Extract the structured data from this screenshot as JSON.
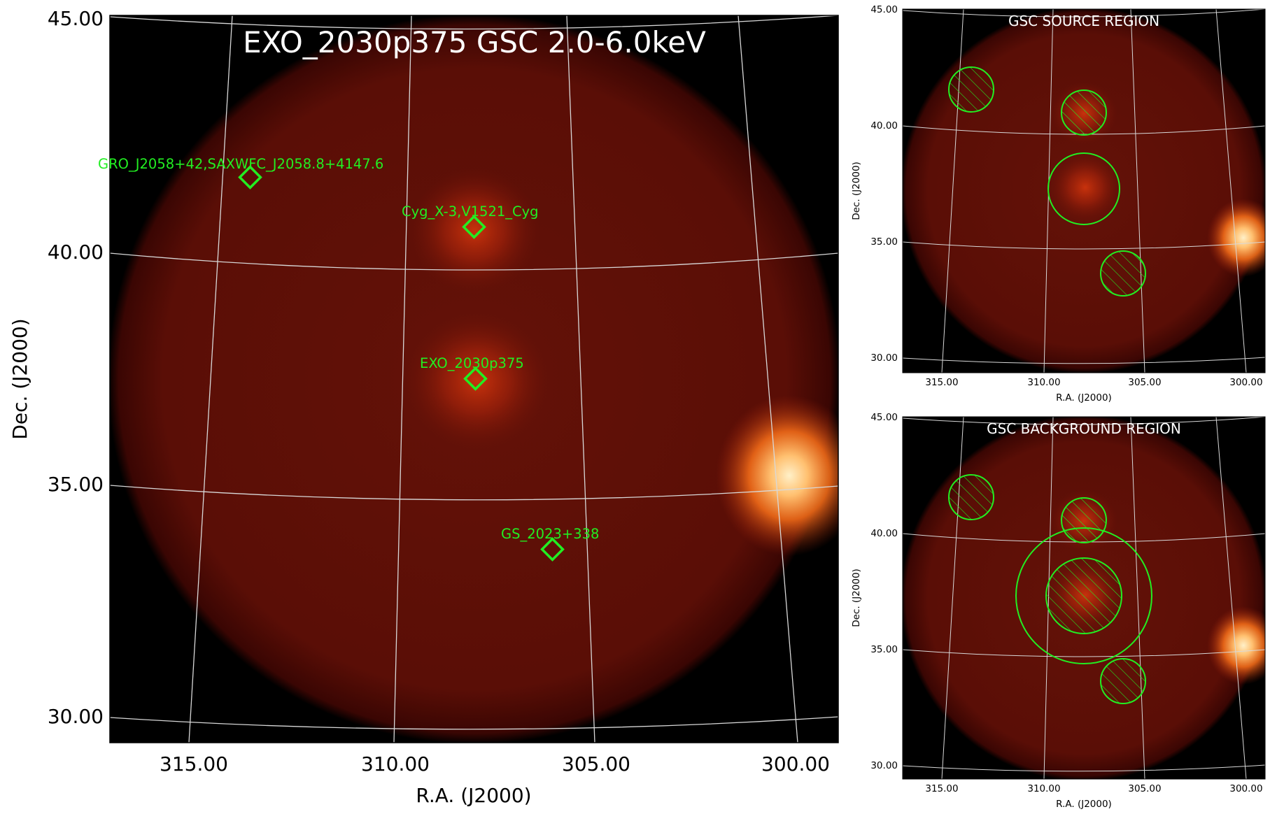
{
  "colors": {
    "source_marker": "#22ee22",
    "region": "#22ee22",
    "grid": "#d8d8d8",
    "sky_dark": "#000000",
    "field_base": "#5e0e05",
    "field_glow": "#b02a0a",
    "bright_source": "#ffdca0",
    "axis_text": "#000000",
    "title_text": "#ffffff"
  },
  "main": {
    "title": "EXO_2030p375 GSC 2.0-6.0keV",
    "xlabel": "R.A. (J2000)",
    "ylabel": "Dec. (J2000)",
    "xticks": [
      "315.00",
      "310.00",
      "305.00",
      "300.00"
    ],
    "yticks": [
      "45.00",
      "40.00",
      "35.00",
      "30.00"
    ],
    "sources": [
      {
        "label": "GRO_J2058+42,SAXWFC_J2058.8+4147.6",
        "ra": 313.5,
        "dec": 41.6
      },
      {
        "label": "Cyg_X-3,V1521_Cyg",
        "ra": 308.1,
        "dec": 40.6
      },
      {
        "label": "EXO_2030p375",
        "ra": 308.1,
        "dec": 37.3
      },
      {
        "label": "GS_2023+338",
        "ra": 306.2,
        "dec": 33.6
      }
    ]
  },
  "source_panel": {
    "title": "GSC SOURCE REGION",
    "xlabel": "R.A. (J2000)",
    "ylabel": "Dec. (J2000)",
    "xticks": [
      "315.00",
      "310.00",
      "305.00",
      "300.00"
    ],
    "yticks": [
      "45.00",
      "40.00",
      "35.00",
      "30.00"
    ]
  },
  "background_panel": {
    "title": "GSC BACKGROUND REGION",
    "xlabel": "R.A. (J2000)",
    "ylabel": "Dec. (J2000)",
    "xticks": [
      "315.00",
      "310.00",
      "305.00",
      "300.00"
    ],
    "yticks": [
      "45.00",
      "40.00",
      "35.00",
      "30.00"
    ]
  }
}
